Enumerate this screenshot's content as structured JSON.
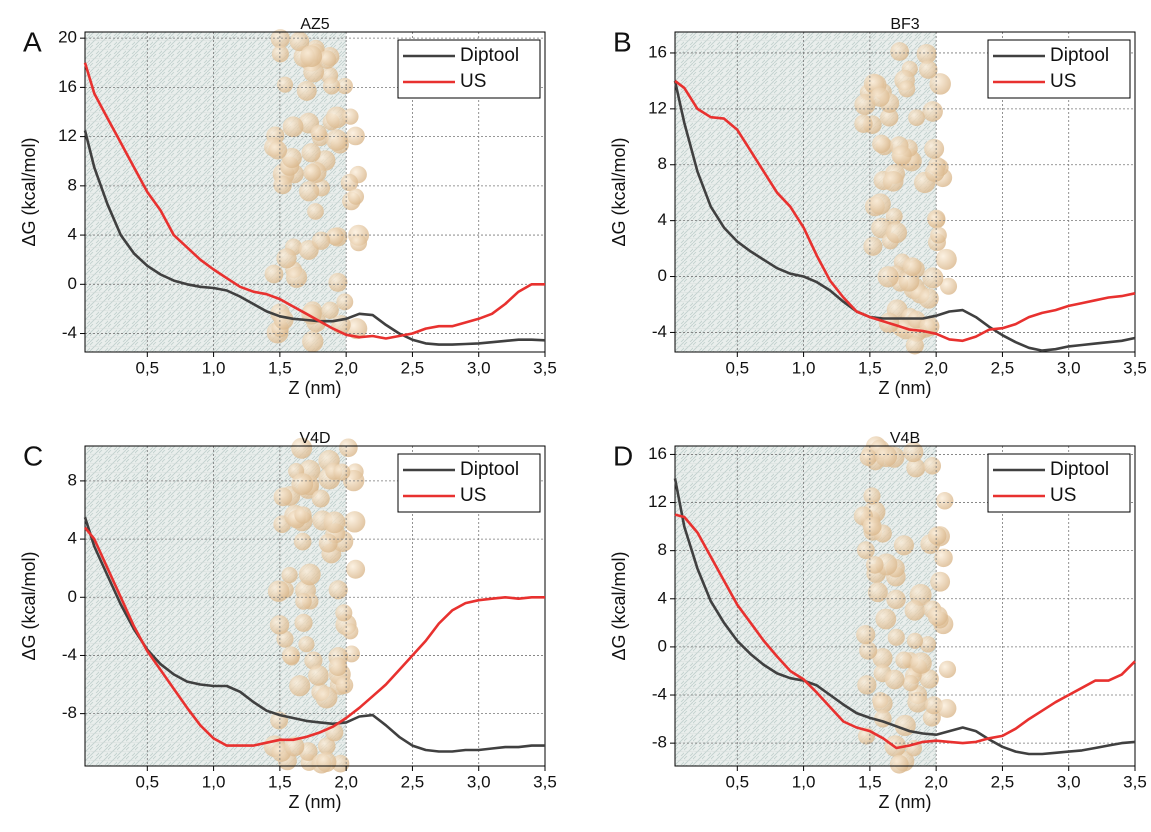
{
  "chart_data": [
    {
      "type": "line",
      "panel": "A",
      "title": "AZ5",
      "x_label": "Z (nm)",
      "y_label": "ΔG (kcal/mol)",
      "x": [
        0.03,
        0.1,
        0.2,
        0.3,
        0.4,
        0.5,
        0.6,
        0.7,
        0.8,
        0.9,
        1.0,
        1.1,
        1.2,
        1.3,
        1.4,
        1.5,
        1.6,
        1.7,
        1.8,
        1.9,
        2.0,
        2.1,
        2.2,
        2.3,
        2.4,
        2.5,
        2.6,
        2.7,
        2.8,
        2.9,
        3.0,
        3.1,
        3.2,
        3.3,
        3.4,
        3.5
      ],
      "series": [
        {
          "name": "Diptool",
          "color": "#404040",
          "values": [
            12.5,
            9.5,
            6.5,
            4,
            2.5,
            1.5,
            0.8,
            0.3,
            0,
            -0.2,
            -0.3,
            -0.5,
            -1.0,
            -1.6,
            -2.2,
            -2.6,
            -2.8,
            -2.9,
            -3.0,
            -3.0,
            -2.8,
            -2.4,
            -2.5,
            -3.3,
            -4.0,
            -4.5,
            -4.8,
            -4.9,
            -4.9,
            -4.85,
            -4.8,
            -4.7,
            -4.6,
            -4.5,
            -4.5,
            -4.55
          ]
        },
        {
          "name": "US",
          "color": "#e8312f",
          "values": [
            18,
            15.5,
            13.5,
            11.5,
            9.5,
            7.5,
            6,
            4,
            3,
            2,
            1.2,
            0.5,
            -0.2,
            -0.6,
            -0.8,
            -1.2,
            -1.8,
            -2.4,
            -3.0,
            -3.6,
            -4.1,
            -4.3,
            -4.2,
            -4.4,
            -4.2,
            -4.0,
            -3.6,
            -3.4,
            -3.4,
            -3.1,
            -2.8,
            -2.4,
            -1.6,
            -0.6,
            0,
            0
          ]
        }
      ],
      "xlim": [
        0.03,
        3.5
      ],
      "xticks": [
        {
          "value": 0.5,
          "label": "0,5"
        },
        {
          "value": 1.0,
          "label": "1,0"
        },
        {
          "value": 1.5,
          "label": "1,5"
        },
        {
          "value": 2.0,
          "label": "2,0"
        },
        {
          "value": 2.5,
          "label": "2,5"
        },
        {
          "value": 3.0,
          "label": "3,0"
        },
        {
          "value": 3.5,
          "label": "3,5"
        }
      ],
      "ylim": [
        -5.5,
        20.5
      ],
      "yticks": [
        -4,
        0,
        4,
        8,
        12,
        16,
        20
      ],
      "grid": true,
      "legend": "upper right"
    },
    {
      "type": "line",
      "panel": "B",
      "title": "BF3",
      "x_label": "Z (nm)",
      "y_label": "ΔG (kcal/mol)",
      "x": [
        0.03,
        0.1,
        0.2,
        0.3,
        0.4,
        0.5,
        0.6,
        0.7,
        0.8,
        0.9,
        1.0,
        1.1,
        1.2,
        1.3,
        1.4,
        1.5,
        1.6,
        1.7,
        1.8,
        1.9,
        2.0,
        2.1,
        2.2,
        2.3,
        2.4,
        2.5,
        2.6,
        2.7,
        2.8,
        2.9,
        3.0,
        3.1,
        3.2,
        3.3,
        3.4,
        3.5
      ],
      "series": [
        {
          "name": "Diptool",
          "color": "#404040",
          "values": [
            14,
            11,
            7.5,
            5,
            3.5,
            2.5,
            1.8,
            1.2,
            0.6,
            0.2,
            0,
            -0.4,
            -1.0,
            -1.8,
            -2.5,
            -2.9,
            -3.0,
            -3.0,
            -3.0,
            -3.0,
            -2.8,
            -2.5,
            -2.4,
            -2.9,
            -3.6,
            -4.2,
            -4.7,
            -5.1,
            -5.3,
            -5.2,
            -5.0,
            -4.9,
            -4.8,
            -4.7,
            -4.6,
            -4.4
          ]
        },
        {
          "name": "US",
          "color": "#e8312f",
          "values": [
            14,
            13.5,
            12,
            11.4,
            11.3,
            10.5,
            9,
            7.5,
            6,
            5,
            3.5,
            1.5,
            -0.3,
            -1.5,
            -2.5,
            -2.9,
            -3.2,
            -3.5,
            -3.8,
            -3.9,
            -4.1,
            -4.5,
            -4.6,
            -4.3,
            -3.8,
            -3.7,
            -3.4,
            -2.9,
            -2.6,
            -2.4,
            -2.1,
            -1.9,
            -1.7,
            -1.5,
            -1.4,
            -1.2
          ]
        }
      ],
      "xlim": [
        0.03,
        3.5
      ],
      "xticks": [
        {
          "value": 0.5,
          "label": "0,5"
        },
        {
          "value": 1.0,
          "label": "1,0"
        },
        {
          "value": 1.5,
          "label": "1,5"
        },
        {
          "value": 2.0,
          "label": "2,0"
        },
        {
          "value": 2.5,
          "label": "2,5"
        },
        {
          "value": 3.0,
          "label": "3,0"
        },
        {
          "value": 3.5,
          "label": "3,5"
        }
      ],
      "ylim": [
        -5.4,
        17.5
      ],
      "yticks": [
        -4,
        0,
        4,
        8,
        12,
        16
      ],
      "grid": true,
      "legend": "upper right"
    },
    {
      "type": "line",
      "panel": "C",
      "title": "V4D",
      "x_label": "Z (nm)",
      "y_label": "ΔG (kcal/mol)",
      "x": [
        0.03,
        0.1,
        0.2,
        0.3,
        0.4,
        0.5,
        0.6,
        0.7,
        0.8,
        0.9,
        1.0,
        1.1,
        1.2,
        1.3,
        1.4,
        1.5,
        1.6,
        1.7,
        1.8,
        1.9,
        2.0,
        2.1,
        2.2,
        2.3,
        2.4,
        2.5,
        2.6,
        2.7,
        2.8,
        2.9,
        3.0,
        3.1,
        3.2,
        3.3,
        3.4,
        3.5
      ],
      "series": [
        {
          "name": "Diptool",
          "color": "#404040",
          "values": [
            5.5,
            3.5,
            1.5,
            -0.5,
            -2.2,
            -3.6,
            -4.6,
            -5.3,
            -5.8,
            -6.0,
            -6.1,
            -6.1,
            -6.5,
            -7.2,
            -7.8,
            -8.1,
            -8.3,
            -8.5,
            -8.6,
            -8.7,
            -8.6,
            -8.2,
            -8.1,
            -8.8,
            -9.6,
            -10.2,
            -10.5,
            -10.6,
            -10.6,
            -10.5,
            -10.5,
            -10.4,
            -10.3,
            -10.3,
            -10.2,
            -10.2
          ]
        },
        {
          "name": "US",
          "color": "#e8312f",
          "values": [
            4.8,
            4,
            2,
            0,
            -2,
            -3.7,
            -5,
            -6.3,
            -7.6,
            -8.8,
            -9.7,
            -10.2,
            -10.2,
            -10.2,
            -10.0,
            -9.8,
            -9.8,
            -9.6,
            -9.3,
            -8.9,
            -8.3,
            -7.6,
            -6.8,
            -6.0,
            -5.0,
            -4.0,
            -3.0,
            -1.8,
            -0.9,
            -0.4,
            -0.2,
            -0.1,
            0,
            -0.1,
            0,
            0
          ]
        }
      ],
      "xlim": [
        0.03,
        3.5
      ],
      "xticks": [
        {
          "value": 0.5,
          "label": "0,5"
        },
        {
          "value": 1.0,
          "label": "1,0"
        },
        {
          "value": 1.5,
          "label": "1,5"
        },
        {
          "value": 2.0,
          "label": "2,0"
        },
        {
          "value": 2.5,
          "label": "2,5"
        },
        {
          "value": 3.0,
          "label": "3,0"
        },
        {
          "value": 3.5,
          "label": "3,5"
        }
      ],
      "ylim": [
        -11.6,
        10.4
      ],
      "yticks": [
        -8,
        -4,
        0,
        4,
        8
      ],
      "grid": true,
      "legend": "upper right"
    },
    {
      "type": "line",
      "panel": "D",
      "title": "V4B",
      "x_label": "Z (nm)",
      "y_label": "ΔG (kcal/mol)",
      "x": [
        0.03,
        0.1,
        0.2,
        0.3,
        0.4,
        0.5,
        0.6,
        0.7,
        0.8,
        0.9,
        1.0,
        1.1,
        1.2,
        1.3,
        1.4,
        1.5,
        1.6,
        1.7,
        1.8,
        1.9,
        2.0,
        2.1,
        2.2,
        2.3,
        2.4,
        2.5,
        2.6,
        2.7,
        2.8,
        2.9,
        3.0,
        3.1,
        3.2,
        3.3,
        3.4,
        3.5
      ],
      "series": [
        {
          "name": "Diptool",
          "color": "#404040",
          "values": [
            14,
            10,
            6.5,
            3.8,
            2,
            0.5,
            -0.6,
            -1.5,
            -2.2,
            -2.6,
            -2.8,
            -3.2,
            -4.0,
            -4.8,
            -5.5,
            -5.9,
            -6.2,
            -6.6,
            -7.0,
            -7.2,
            -7.3,
            -7.0,
            -6.7,
            -7.0,
            -7.7,
            -8.3,
            -8.7,
            -8.9,
            -8.9,
            -8.8,
            -8.7,
            -8.6,
            -8.4,
            -8.2,
            -8.0,
            -7.9
          ]
        },
        {
          "name": "US",
          "color": "#e8312f",
          "values": [
            11,
            10.8,
            9.5,
            7.5,
            5.5,
            3.5,
            2,
            0.5,
            -0.8,
            -2.0,
            -2.7,
            -3.8,
            -5.0,
            -6.2,
            -6.7,
            -7.0,
            -7.6,
            -8.4,
            -8.2,
            -7.9,
            -7.8,
            -7.9,
            -8.0,
            -7.9,
            -7.6,
            -7.4,
            -6.8,
            -6.0,
            -5.3,
            -4.6,
            -4.0,
            -3.4,
            -2.8,
            -2.8,
            -2.3,
            -1.2
          ]
        }
      ],
      "xlim": [
        0.03,
        3.5
      ],
      "xticks": [
        {
          "value": 0.5,
          "label": "0,5"
        },
        {
          "value": 1.0,
          "label": "1,0"
        },
        {
          "value": 1.5,
          "label": "1,5"
        },
        {
          "value": 2.0,
          "label": "2,0"
        },
        {
          "value": 2.5,
          "label": "2,5"
        },
        {
          "value": 3.0,
          "label": "3,0"
        },
        {
          "value": 3.5,
          "label": "3,5"
        }
      ],
      "ylim": [
        -9.9,
        16.7
      ],
      "yticks": [
        -8,
        -4,
        0,
        4,
        8,
        12,
        16
      ],
      "grid": true,
      "legend": "upper right"
    }
  ]
}
